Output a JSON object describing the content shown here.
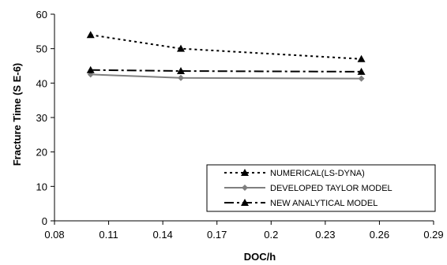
{
  "chart_data": {
    "type": "line",
    "xlabel": "DOC/h",
    "ylabel": "Fracture Time (S E-6)",
    "xlim": [
      0.08,
      0.29
    ],
    "ylim": [
      0,
      60
    ],
    "x_ticks": [
      "0.08",
      "0.11",
      "0.14",
      "0.17",
      "0.2",
      "0.23",
      "0.26",
      "0.29"
    ],
    "y_ticks": [
      "0",
      "10",
      "20",
      "30",
      "40",
      "50",
      "60"
    ],
    "grid": false,
    "legend_position": "bottom-right",
    "series": [
      {
        "name": "NUMERICAL(LS-DYNA)",
        "color": "#000000",
        "line_style": "dotted",
        "marker": "triangle",
        "points": [
          {
            "x": 0.1,
            "y": 54
          },
          {
            "x": 0.15,
            "y": 50
          },
          {
            "x": 0.25,
            "y": 47
          }
        ]
      },
      {
        "name": "DEVELOPED TAYLOR MODEL",
        "color": "#7f7f7f",
        "line_style": "solid",
        "marker": "diamond",
        "points": [
          {
            "x": 0.1,
            "y": 42.5
          },
          {
            "x": 0.15,
            "y": 41.5
          },
          {
            "x": 0.25,
            "y": 41.3
          }
        ]
      },
      {
        "name": "NEW ANALYTICAL MODEL",
        "color": "#000000",
        "line_style": "dash-dot",
        "marker": "triangle",
        "points": [
          {
            "x": 0.1,
            "y": 43.8
          },
          {
            "x": 0.15,
            "y": 43.5
          },
          {
            "x": 0.25,
            "y": 43.3
          }
        ]
      }
    ]
  }
}
